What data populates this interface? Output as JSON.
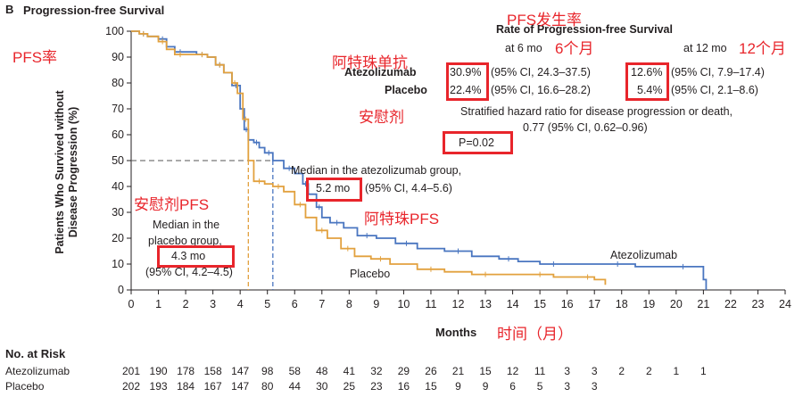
{
  "panel": {
    "letter": "B",
    "title": "Progression-free Survival"
  },
  "chart_data": {
    "type": "line",
    "xlabel": "Months",
    "ylabel_line1": "Patients Who Survived without",
    "ylabel_line2": "Disease Progression (%)",
    "xlim": [
      0,
      24
    ],
    "ylim": [
      0,
      100
    ],
    "xticks": [
      "0",
      "1",
      "2",
      "3",
      "4",
      "5",
      "6",
      "7",
      "8",
      "9",
      "10",
      "11",
      "12",
      "13",
      "14",
      "15",
      "16",
      "17",
      "18",
      "19",
      "20",
      "21",
      "22",
      "23",
      "24"
    ],
    "yticks": [
      "0",
      "10",
      "20",
      "30",
      "40",
      "50",
      "60",
      "70",
      "80",
      "90",
      "100"
    ],
    "series": [
      {
        "name": "Atezolizumab",
        "color": "#4a76c0",
        "x": [
          0,
          0.3,
          0.6,
          1,
          1.3,
          1.6,
          2,
          2.4,
          2.8,
          3.1,
          3.4,
          3.7,
          4.0,
          4.15,
          4.3,
          4.5,
          4.7,
          4.9,
          5.2,
          5.6,
          6.0,
          6.3,
          6.5,
          6.8,
          7.0,
          7.3,
          7.8,
          8.3,
          9.0,
          9.7,
          10.5,
          11.5,
          12.5,
          13.5,
          14.2,
          15.0,
          16.0,
          17.2,
          18.5,
          19.5,
          21.0,
          21.1
        ],
        "y": [
          100,
          99,
          98,
          97,
          94,
          92,
          92,
          91,
          90,
          87,
          84,
          79,
          70,
          62,
          58,
          57,
          55,
          53,
          50,
          47,
          45,
          41,
          37,
          32,
          28,
          26,
          24,
          21,
          20,
          18,
          16,
          15,
          13,
          12,
          11,
          10,
          10,
          10,
          9,
          9,
          4,
          0
        ]
      },
      {
        "name": "Placebo",
        "color": "#e2a13e",
        "x": [
          0,
          0.3,
          0.6,
          1,
          1.3,
          1.6,
          2,
          2.4,
          2.8,
          3.1,
          3.4,
          3.7,
          3.9,
          4.1,
          4.3,
          4.5,
          4.9,
          5.2,
          5.6,
          6.0,
          6.4,
          6.8,
          7.2,
          7.7,
          8.2,
          8.8,
          9.5,
          10.5,
          11.5,
          12.5,
          13.5,
          14.5,
          15.5,
          16.5,
          17.0,
          17.4
        ],
        "y": [
          100,
          99,
          98,
          96,
          93,
          91,
          91,
          91,
          90,
          87,
          84,
          80,
          76,
          66,
          50,
          42,
          41,
          40,
          38,
          33,
          28,
          23,
          20,
          16,
          13,
          12,
          10,
          8,
          7,
          6,
          6,
          6,
          5,
          5,
          4,
          2
        ]
      }
    ],
    "median_lines": [
      {
        "x": 4.3,
        "y": 50,
        "color": "#e2a13e"
      },
      {
        "x": 5.2,
        "y": 50,
        "color": "#4a76c0"
      }
    ],
    "curve_labels": {
      "atezolizumab": "Atezolizumab",
      "placebo": "Placebo"
    }
  },
  "annotations": {
    "median_atezo_text": "Median in the atezolizumab group,",
    "median_atezo_value": "5.2 mo",
    "median_atezo_ci": "(95% CI, 4.4–5.6)",
    "median_placebo_line1": "Median in the",
    "median_placebo_line2": "placebo group,",
    "median_placebo_value": "4.3 mo",
    "median_placebo_ci": "(95% CI, 4.2–4.5)",
    "rate_title": "Rate of Progression-free Survival",
    "at6": "at 6 mo",
    "at12": "at 12 mo",
    "atezo_label": "Atezolizumab",
    "placebo_label": "Placebo",
    "atezo_6": "30.9%",
    "atezo_6_ci": "(95% CI, 24.3–37.5)",
    "atezo_12": "12.6%",
    "atezo_12_ci": "(95% CI, 7.9–17.4)",
    "placebo_6": "22.4%",
    "placebo_6_ci": "(95% CI, 16.6–28.2)",
    "placebo_12": "5.4%",
    "placebo_12_ci": "(95% CI, 2.1–8.6)",
    "hr_line1": "Stratified hazard ratio for disease progression or death,",
    "hr_line2": "0.77 (95% CI, 0.62–0.96)",
    "p_value": "P=0.02"
  },
  "chinese_notes": {
    "pfs_rate": "PFS率",
    "pfs_incidence": "PFS发生率",
    "six_months": "6个月",
    "twelve_months": "12个月",
    "atezo_mab": "阿特珠单抗",
    "placebo": "安慰剂",
    "placebo_pfs": "安慰剂PFS",
    "atezo_pfs": "阿特珠PFS",
    "time_month": "时间（月）"
  },
  "risk_table": {
    "header": "No. at Risk",
    "rows": [
      {
        "label": "Atezolizumab",
        "values": [
          "201",
          "190",
          "178",
          "158",
          "147",
          "98",
          "58",
          "48",
          "41",
          "32",
          "29",
          "26",
          "21",
          "15",
          "12",
          "11",
          "3",
          "3",
          "2",
          "2",
          "1",
          "1"
        ]
      },
      {
        "label": "Placebo",
        "values": [
          "202",
          "193",
          "184",
          "167",
          "147",
          "80",
          "44",
          "30",
          "25",
          "23",
          "16",
          "15",
          "9",
          "9",
          "6",
          "5",
          "3",
          "3"
        ]
      }
    ]
  }
}
